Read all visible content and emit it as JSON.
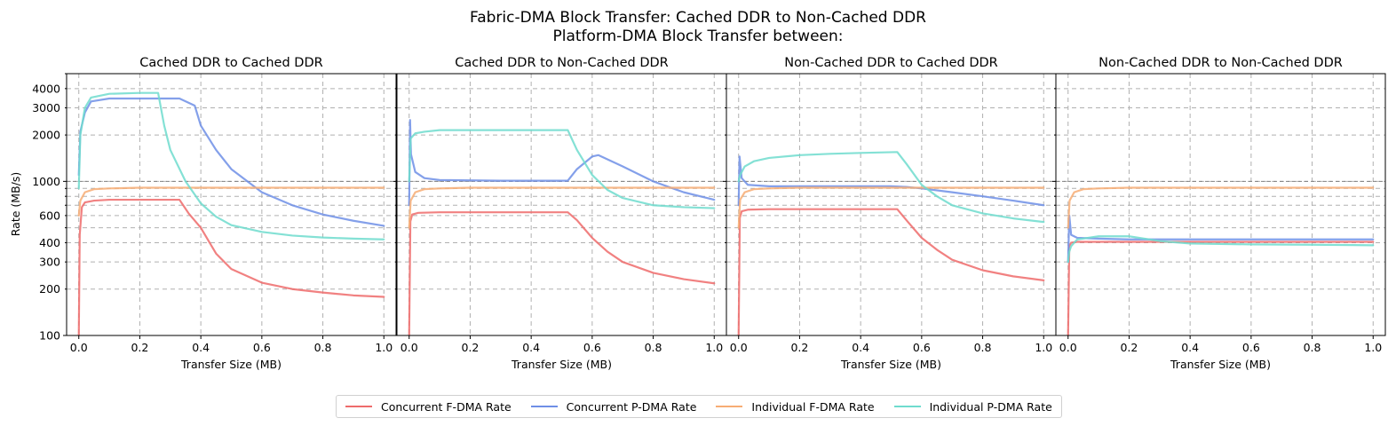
{
  "figure": {
    "suptitle_line1": "Fabric-DMA Block Transfer: Cached DDR to Non-Cached DDR",
    "suptitle_line2": "Platform-DMA Block Transfer between:",
    "ylabel": "Rate (MB/s)",
    "xlabel": "Transfer Size (MB)"
  },
  "legend": {
    "placement": "bottom-center",
    "entries": [
      {
        "label": "Concurrent F-DMA Rate",
        "color": "#ee6b6b"
      },
      {
        "label": "Concurrent P-DMA Rate",
        "color": "#6f8fe6"
      },
      {
        "label": "Individual F-DMA Rate",
        "color": "#f7ad74"
      },
      {
        "label": "Individual P-DMA Rate",
        "color": "#6fdcce"
      }
    ]
  },
  "chart_data": [
    {
      "type": "line",
      "title": "Cached DDR to Cached DDR",
      "xlabel": "Transfer Size (MB)",
      "ylabel": "Rate (MB/s)",
      "xlim": [
        -0.04,
        1.04
      ],
      "ylim": [
        100,
        5000
      ],
      "yscale": "log",
      "grid": true,
      "reference_line_y": 1000,
      "xticks": [
        "0.0",
        "0.2",
        "0.4",
        "0.6",
        "0.8",
        "1.0"
      ],
      "yticks": [
        "100",
        "200",
        "300",
        "400",
        "600",
        "1000",
        "2000",
        "3000",
        "4000"
      ],
      "series": [
        {
          "name": "Concurrent F-DMA Rate",
          "x": [
            0.0,
            0.003,
            0.01,
            0.02,
            0.05,
            0.1,
            0.2,
            0.33,
            0.36,
            0.4,
            0.45,
            0.5,
            0.6,
            0.7,
            0.8,
            0.9,
            1.0
          ],
          "y": [
            100,
            450,
            680,
            730,
            750,
            760,
            760,
            760,
            620,
            500,
            340,
            270,
            220,
            200,
            190,
            182,
            178
          ]
        },
        {
          "name": "Concurrent P-DMA Rate",
          "x": [
            0.0,
            0.005,
            0.02,
            0.04,
            0.1,
            0.2,
            0.33,
            0.38,
            0.4,
            0.45,
            0.5,
            0.6,
            0.7,
            0.8,
            0.9,
            1.0
          ],
          "y": [
            1100,
            2100,
            2800,
            3300,
            3450,
            3450,
            3450,
            3100,
            2300,
            1600,
            1200,
            850,
            700,
            610,
            555,
            515
          ]
        },
        {
          "name": "Individual F-DMA Rate",
          "x": [
            0.0,
            0.005,
            0.02,
            0.05,
            0.1,
            0.2,
            0.4,
            0.6,
            0.8,
            1.0
          ],
          "y": [
            600,
            750,
            850,
            890,
            900,
            910,
            910,
            910,
            910,
            910
          ]
        },
        {
          "name": "Individual P-DMA Rate",
          "x": [
            0.0,
            0.005,
            0.02,
            0.04,
            0.1,
            0.2,
            0.26,
            0.28,
            0.3,
            0.35,
            0.4,
            0.45,
            0.5,
            0.6,
            0.7,
            0.8,
            0.9,
            1.0
          ],
          "y": [
            900,
            2000,
            3000,
            3500,
            3700,
            3750,
            3750,
            2300,
            1600,
            1000,
            720,
            590,
            520,
            470,
            445,
            432,
            425,
            420
          ]
        }
      ]
    },
    {
      "type": "line",
      "title": "Cached DDR to Non-Cached DDR",
      "xlabel": "Transfer Size (MB)",
      "xlim": [
        -0.04,
        1.04
      ],
      "ylim": [
        100,
        5000
      ],
      "yscale": "log",
      "grid": true,
      "reference_line_y": 1000,
      "xticks": [
        "0.0",
        "0.2",
        "0.4",
        "0.6",
        "0.8",
        "1.0"
      ],
      "series": [
        {
          "name": "Concurrent F-DMA Rate",
          "x": [
            0.0,
            0.004,
            0.01,
            0.03,
            0.1,
            0.3,
            0.52,
            0.55,
            0.6,
            0.65,
            0.7,
            0.8,
            0.9,
            1.0
          ],
          "y": [
            100,
            550,
            610,
            625,
            630,
            630,
            630,
            560,
            430,
            350,
            300,
            255,
            232,
            218
          ]
        },
        {
          "name": "Concurrent P-DMA Rate",
          "x": [
            0.0,
            0.003,
            0.006,
            0.02,
            0.05,
            0.1,
            0.3,
            0.52,
            0.55,
            0.6,
            0.62,
            0.7,
            0.8,
            0.9,
            1.0
          ],
          "y": [
            700,
            2500,
            1500,
            1150,
            1050,
            1020,
            1010,
            1010,
            1200,
            1450,
            1480,
            1250,
            1000,
            850,
            760
          ]
        },
        {
          "name": "Individual F-DMA Rate",
          "x": [
            0.0,
            0.005,
            0.02,
            0.05,
            0.1,
            0.2,
            0.4,
            0.6,
            0.8,
            1.0
          ],
          "y": [
            500,
            750,
            850,
            890,
            900,
            910,
            910,
            910,
            910,
            910
          ]
        },
        {
          "name": "Individual P-DMA Rate",
          "x": [
            0.0,
            0.005,
            0.02,
            0.05,
            0.1,
            0.3,
            0.52,
            0.55,
            0.6,
            0.65,
            0.7,
            0.8,
            0.9,
            1.0
          ],
          "y": [
            1000,
            1900,
            2050,
            2100,
            2150,
            2150,
            2150,
            1600,
            1100,
            880,
            780,
            700,
            680,
            670
          ]
        }
      ]
    },
    {
      "type": "line",
      "title": "Non-Cached DDR to Cached DDR",
      "xlabel": "Transfer Size (MB)",
      "xlim": [
        -0.04,
        1.04
      ],
      "ylim": [
        100,
        5000
      ],
      "yscale": "log",
      "grid": true,
      "reference_line_y": 1000,
      "xticks": [
        "0.0",
        "0.2",
        "0.4",
        "0.6",
        "0.8",
        "1.0"
      ],
      "series": [
        {
          "name": "Concurrent F-DMA Rate",
          "x": [
            0.0,
            0.004,
            0.01,
            0.03,
            0.1,
            0.3,
            0.52,
            0.55,
            0.6,
            0.65,
            0.7,
            0.8,
            0.9,
            1.0
          ],
          "y": [
            100,
            580,
            640,
            655,
            660,
            660,
            660,
            560,
            430,
            360,
            310,
            265,
            242,
            228
          ]
        },
        {
          "name": "Concurrent P-DMA Rate",
          "x": [
            0.0,
            0.003,
            0.01,
            0.03,
            0.1,
            0.3,
            0.5,
            0.55,
            0.6,
            0.7,
            0.8,
            0.9,
            1.0
          ],
          "y": [
            700,
            1450,
            1050,
            950,
            930,
            930,
            930,
            920,
            900,
            850,
            800,
            750,
            700
          ]
        },
        {
          "name": "Individual F-DMA Rate",
          "x": [
            0.0,
            0.005,
            0.02,
            0.05,
            0.1,
            0.2,
            0.4,
            0.6,
            0.8,
            1.0
          ],
          "y": [
            500,
            760,
            850,
            890,
            900,
            910,
            910,
            910,
            910,
            910
          ]
        },
        {
          "name": "Individual P-DMA Rate",
          "x": [
            0.0,
            0.005,
            0.02,
            0.05,
            0.1,
            0.2,
            0.3,
            0.4,
            0.52,
            0.55,
            0.6,
            0.65,
            0.7,
            0.8,
            0.9,
            1.0
          ],
          "y": [
            1000,
            1100,
            1250,
            1350,
            1420,
            1480,
            1510,
            1530,
            1550,
            1300,
            950,
            800,
            700,
            620,
            575,
            545
          ]
        }
      ]
    },
    {
      "type": "line",
      "title": "Non-Cached DDR to Non-Cached DDR",
      "xlabel": "Transfer Size (MB)",
      "xlim": [
        -0.04,
        1.04
      ],
      "ylim": [
        100,
        5000
      ],
      "yscale": "log",
      "grid": true,
      "reference_line_y": 1000,
      "xticks": [
        "0.0",
        "0.2",
        "0.4",
        "0.6",
        "0.8",
        "1.0"
      ],
      "series": [
        {
          "name": "Concurrent F-DMA Rate",
          "x": [
            0.0,
            0.004,
            0.01,
            0.03,
            0.1,
            0.2,
            0.4,
            0.6,
            0.8,
            1.0
          ],
          "y": [
            100,
            380,
            400,
            405,
            405,
            405,
            405,
            405,
            405,
            405
          ]
        },
        {
          "name": "Concurrent P-DMA Rate",
          "x": [
            0.0,
            0.004,
            0.01,
            0.03,
            0.1,
            0.2,
            0.4,
            0.6,
            0.8,
            1.0
          ],
          "y": [
            300,
            600,
            450,
            430,
            425,
            420,
            420,
            420,
            420,
            420
          ]
        },
        {
          "name": "Individual F-DMA Rate",
          "x": [
            0.0,
            0.005,
            0.02,
            0.05,
            0.1,
            0.2,
            0.4,
            0.6,
            0.8,
            1.0
          ],
          "y": [
            500,
            750,
            850,
            890,
            900,
            910,
            910,
            910,
            910,
            910
          ]
        },
        {
          "name": "Individual P-DMA Rate",
          "x": [
            0.0,
            0.004,
            0.01,
            0.03,
            0.1,
            0.2,
            0.3,
            0.4,
            0.6,
            0.8,
            1.0
          ],
          "y": [
            300,
            350,
            380,
            420,
            440,
            440,
            410,
            395,
            390,
            388,
            385
          ]
        }
      ]
    }
  ]
}
